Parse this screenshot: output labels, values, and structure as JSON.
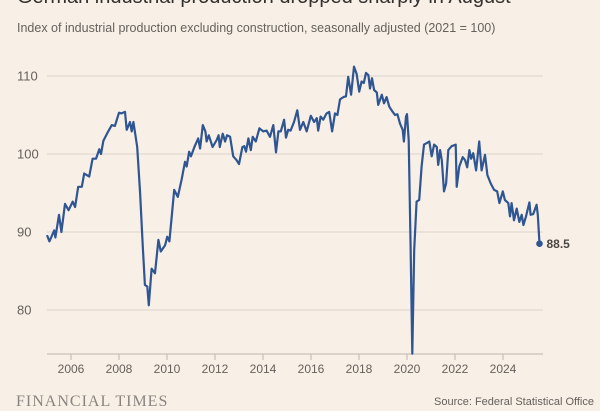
{
  "chart_data": {
    "type": "line",
    "title": "German industrial production dropped sharply in August",
    "subtitle": "Index of industrial production excluding construction, seasonally adjusted (2021 = 100)",
    "xlabel": "",
    "ylabel": "",
    "xlim": [
      2005,
      2025.8
    ],
    "ylim": [
      74.4,
      112
    ],
    "x_ticks": [
      "2006",
      "2008",
      "2010",
      "2012",
      "2014",
      "2016",
      "2018",
      "2020",
      "2022",
      "2024"
    ],
    "y_ticks": [
      "80",
      "90",
      "100",
      "110"
    ],
    "grid": "horizontal",
    "line_color": "#2f5592",
    "end_label": "88.5",
    "series": [
      {
        "x": [
          2005.0,
          2005.1,
          2005.3,
          2005.35,
          2005.5,
          2005.6,
          2005.75,
          2005.9,
          2006.07,
          2006.17,
          2006.3,
          2006.45,
          2006.55,
          2006.76,
          2006.9,
          2007.04,
          2007.18,
          2007.25,
          2007.35,
          2007.55,
          2007.7,
          2007.83,
          2008.0,
          2008.1,
          2008.25,
          2008.32,
          2008.46,
          2008.53,
          2008.6,
          2008.76,
          2008.88,
          2008.99,
          2009.08,
          2009.18,
          2009.24,
          2009.36,
          2009.5,
          2009.64,
          2009.74,
          2009.92,
          2010.01,
          2010.1,
          2010.3,
          2010.45,
          2010.61,
          2010.75,
          2010.82,
          2010.92,
          2011.0,
          2011.14,
          2011.3,
          2011.38,
          2011.49,
          2011.6,
          2011.65,
          2011.74,
          2011.9,
          2012.07,
          2012.15,
          2012.2,
          2012.32,
          2012.42,
          2012.5,
          2012.63,
          2012.76,
          2012.9,
          2013.0,
          2013.14,
          2013.22,
          2013.29,
          2013.39,
          2013.49,
          2013.57,
          2013.7,
          2013.85,
          2014.01,
          2014.15,
          2014.29,
          2014.43,
          2014.54,
          2014.64,
          2014.74,
          2014.88,
          2014.96,
          2015.05,
          2015.15,
          2015.29,
          2015.43,
          2015.54,
          2015.68,
          2015.82,
          2015.99,
          2016.13,
          2016.24,
          2016.3,
          2016.4,
          2016.51,
          2016.65,
          2016.76,
          2016.88,
          2017.0,
          2017.1,
          2017.21,
          2017.35,
          2017.46,
          2017.55,
          2017.67,
          2017.79,
          2017.9,
          2018.01,
          2018.11,
          2018.2,
          2018.29,
          2018.39,
          2018.46,
          2018.54,
          2018.63,
          2018.74,
          2018.8,
          2018.95,
          2019.04,
          2019.15,
          2019.26,
          2019.36,
          2019.5,
          2019.6,
          2019.71,
          2019.82,
          2019.87,
          2019.96,
          2020.0,
          2020.07,
          2020.15,
          2020.22,
          2020.3,
          2020.4,
          2020.51,
          2020.61,
          2020.71,
          2020.82,
          2020.93,
          2021.03,
          2021.13,
          2021.24,
          2021.3,
          2021.38,
          2021.45,
          2021.54,
          2021.63,
          2021.72,
          2021.86,
          2022.03,
          2022.07,
          2022.18,
          2022.32,
          2022.42,
          2022.51,
          2022.6,
          2022.67,
          2022.76,
          2022.88,
          2023.01,
          2023.11,
          2023.25,
          2023.35,
          2023.49,
          2023.63,
          2023.76,
          2023.85,
          2023.99,
          2024.08,
          2024.22,
          2024.29,
          2024.36,
          2024.46,
          2024.57,
          2024.68,
          2024.78,
          2024.85,
          2024.96,
          2025.1,
          2025.15,
          2025.26,
          2025.4,
          2025.45,
          2025.52
        ],
        "values": [
          89.6,
          88.8,
          90.2,
          89.3,
          92.2,
          90.0,
          93.6,
          92.8,
          93.9,
          93.2,
          95.8,
          95.8,
          97.5,
          97.1,
          99.4,
          99.4,
          100.6,
          100.0,
          101.7,
          102.9,
          103.7,
          103.6,
          105.3,
          105.2,
          105.4,
          103.1,
          104.1,
          102.9,
          104.1,
          100.9,
          95.0,
          88.1,
          83.2,
          83.0,
          80.6,
          85.3,
          84.7,
          89.0,
          87.5,
          88.3,
          89.4,
          88.8,
          95.4,
          94.5,
          96.7,
          99.0,
          98.4,
          100.3,
          99.7,
          100.9,
          102.0,
          100.7,
          103.7,
          102.9,
          101.6,
          102.4,
          100.9,
          101.8,
          102.4,
          100.9,
          102.6,
          101.6,
          102.4,
          102.2,
          99.7,
          99.2,
          98.7,
          100.9,
          101.0,
          100.3,
          102.0,
          100.5,
          102.2,
          101.6,
          103.3,
          102.9,
          103.0,
          102.2,
          103.7,
          100.2,
          102.9,
          102.9,
          104.4,
          102.1,
          103.1,
          103.0,
          104.1,
          105.6,
          103.1,
          104.1,
          102.9,
          104.9,
          104.1,
          104.6,
          103.0,
          104.8,
          104.4,
          105.2,
          105.4,
          102.9,
          105.2,
          105.0,
          107.0,
          107.3,
          107.4,
          109.9,
          107.6,
          111.2,
          110.3,
          108.0,
          109.3,
          109.1,
          110.4,
          110.1,
          108.4,
          109.7,
          108.2,
          107.9,
          106.3,
          107.6,
          106.5,
          107.3,
          106.1,
          105.6,
          105.0,
          105.1,
          103.9,
          103.1,
          101.6,
          104.8,
          105.1,
          101.8,
          88.1,
          74.4,
          87.7,
          93.9,
          94.1,
          98.4,
          101.2,
          101.4,
          101.6,
          99.7,
          101.2,
          100.9,
          98.6,
          100.5,
          99.2,
          95.2,
          96.2,
          100.5,
          101.0,
          101.2,
          95.8,
          98.4,
          99.6,
          99.2,
          98.3,
          100.5,
          99.4,
          100.1,
          97.9,
          101.6,
          97.9,
          99.9,
          97.3,
          96.2,
          95.4,
          95.2,
          93.7,
          95.2,
          94.1,
          93.7,
          92.0,
          93.7,
          91.5,
          93.0,
          91.3,
          92.2,
          90.9,
          92.0,
          93.8,
          92.2,
          92.3,
          93.5,
          92.2,
          88.5
        ]
      }
    ]
  },
  "footer": {
    "logo": "FINANCIAL TIMES",
    "source": "Source: Federal Statistical Office"
  }
}
